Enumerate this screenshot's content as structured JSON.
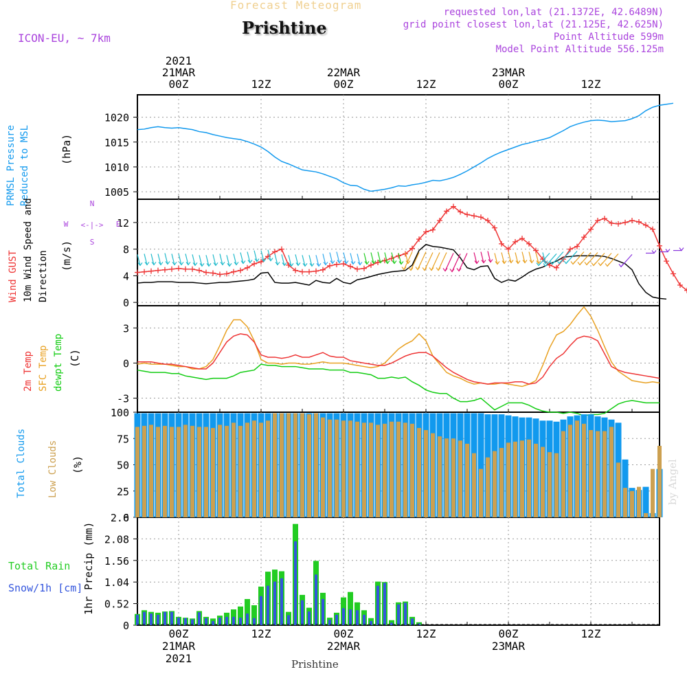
{
  "header": {
    "subtitle": "Forecast Meteogram",
    "location": "Prishtine",
    "model": "ICON-EU, ~ 7km",
    "requested": "requested lon,lat (21.1372E, 42.6489N)",
    "closest": "grid point closest lon,lat (21.125E, 42.625N)",
    "point_alt": "Point Altitude 599m",
    "model_alt": "Model Point Altitude 556.125m"
  },
  "footer": {
    "location": "Prishtine",
    "credit": "by Angel"
  },
  "time_axis": {
    "top_labels": [
      {
        "hour": 6,
        "lines": [
          "2021",
          "21MAR",
          "00Z"
        ]
      },
      {
        "hour": 18,
        "lines": [
          "12Z"
        ]
      },
      {
        "hour": 30,
        "lines": [
          "22MAR",
          "00Z"
        ]
      },
      {
        "hour": 42,
        "lines": [
          "12Z"
        ]
      },
      {
        "hour": 54,
        "lines": [
          "23MAR",
          "00Z"
        ]
      },
      {
        "hour": 66,
        "lines": [
          "12Z"
        ]
      }
    ],
    "bottom_labels": [
      {
        "hour": 6,
        "lines": [
          "00Z",
          "21MAR",
          "2021"
        ]
      },
      {
        "hour": 18,
        "lines": [
          "12Z"
        ]
      },
      {
        "hour": 30,
        "lines": [
          "00Z",
          "22MAR"
        ]
      },
      {
        "hour": 42,
        "lines": [
          "12Z"
        ]
      },
      {
        "hour": 54,
        "lines": [
          "00Z",
          "23MAR"
        ]
      },
      {
        "hour": 66,
        "lines": [
          "12Z"
        ]
      }
    ]
  },
  "colors": {
    "pressure": "#1199ee",
    "gust": "#ee3333",
    "wind": "#000000",
    "legend_green": "#00bb00",
    "temp2m": "#ee3333",
    "sfc": "#e8a020",
    "dewpt": "#11cc11",
    "total_clouds": "#1199ee",
    "low_clouds": "#cca050",
    "rain": "#22cc22",
    "snow": "#3355dd",
    "purple": "#aa44dd"
  },
  "chart_data": [
    {
      "type": "line",
      "title": "PRMSL Pressure Reduced to MSL",
      "ylabel": "(hPa)",
      "ylim": [
        1003.5,
        1024.5
      ],
      "yticks": [
        1005,
        1010,
        1015,
        1020
      ],
      "xlim": [
        0,
        76
      ],
      "x_step_hours": 1,
      "series": [
        {
          "name": "PRMSL",
          "values": [
            1017.5,
            1017.6,
            1017.9,
            1018.1,
            1017.9,
            1017.8,
            1017.9,
            1017.7,
            1017.5,
            1017.1,
            1016.9,
            1016.5,
            1016.2,
            1015.9,
            1015.7,
            1015.5,
            1015.1,
            1014.6,
            1014.0,
            1013.1,
            1012.0,
            1011.1,
            1010.6,
            1010.0,
            1009.4,
            1009.2,
            1009.0,
            1008.6,
            1008.1,
            1007.6,
            1006.8,
            1006.3,
            1006.2,
            1005.5,
            1005.1,
            1005.3,
            1005.5,
            1005.8,
            1006.2,
            1006.1,
            1006.4,
            1006.6,
            1006.9,
            1007.3,
            1007.2,
            1007.5,
            1007.9,
            1008.5,
            1009.2,
            1010.0,
            1010.8,
            1011.7,
            1012.4,
            1013.0,
            1013.5,
            1014.0,
            1014.5,
            1014.8,
            1015.2,
            1015.5,
            1015.9,
            1016.6,
            1017.3,
            1018.1,
            1018.6,
            1019.0,
            1019.3,
            1019.4,
            1019.3,
            1019.1,
            1019.2,
            1019.3,
            1019.7,
            1020.3,
            1021.3,
            1022.0,
            1022.4,
            1022.6,
            1022.8
          ]
        }
      ]
    },
    {
      "type": "line",
      "title": "Wind GUST / 10m Wind Speed and Direction",
      "ylabel": "(m/s)",
      "ylim": [
        -0.5,
        15.5
      ],
      "yticks": [
        0,
        4,
        8,
        12
      ],
      "compass": [
        "N",
        "E",
        "S",
        "W"
      ],
      "x_step_hours": 1,
      "series": [
        {
          "name": "Wind GUST",
          "values": [
            4.5,
            4.6,
            4.7,
            4.8,
            4.9,
            5.0,
            5.1,
            5.0,
            5.0,
            4.8,
            4.5,
            4.4,
            4.2,
            4.3,
            4.6,
            4.8,
            5.2,
            5.8,
            6.1,
            6.9,
            7.6,
            8.0,
            5.6,
            4.8,
            4.6,
            4.6,
            4.7,
            4.9,
            5.5,
            5.7,
            5.8,
            5.4,
            5.0,
            5.1,
            5.6,
            6.0,
            6.3,
            6.6,
            7.0,
            7.3,
            8.1,
            9.5,
            10.6,
            10.9,
            12.3,
            13.7,
            14.4,
            13.6,
            13.2,
            13.0,
            12.8,
            12.3,
            11.2,
            8.8,
            8.0,
            9.1,
            9.6,
            8.8,
            7.8,
            6.5,
            5.6,
            5.2,
            6.5,
            8.0,
            8.4,
            9.8,
            11.0,
            12.3,
            12.6,
            11.9,
            11.8,
            12.0,
            12.3,
            12.1,
            11.6,
            11.0,
            8.5,
            6.2,
            4.3,
            2.6,
            1.8,
            1.0,
            0.9
          ]
        },
        {
          "name": "10m Wind",
          "values": [
            2.9,
            3.0,
            3.0,
            3.1,
            3.1,
            3.1,
            3.0,
            3.0,
            3.0,
            2.9,
            2.8,
            2.9,
            3.0,
            3.0,
            3.1,
            3.2,
            3.3,
            3.5,
            4.4,
            4.5,
            3.0,
            2.9,
            2.9,
            3.0,
            2.8,
            2.6,
            3.3,
            3.0,
            2.9,
            3.6,
            3.0,
            2.8,
            3.4,
            3.6,
            3.9,
            4.2,
            4.4,
            4.6,
            4.7,
            4.8,
            5.6,
            7.8,
            8.7,
            8.4,
            8.3,
            8.1,
            7.9,
            6.7,
            5.2,
            4.9,
            5.4,
            5.5,
            3.6,
            3.0,
            3.4,
            3.2,
            3.8,
            4.5,
            5.0,
            5.3,
            5.8,
            6.2,
            6.8,
            6.9,
            7.0,
            7.0,
            7.0,
            7.0,
            6.9,
            6.6,
            6.2,
            5.8,
            4.9,
            2.8,
            1.5,
            0.8,
            0.6,
            0.5
          ]
        },
        {
          "name": "Barbs",
          "values": [
            7.2,
            7.3,
            7.3,
            7.3,
            7.4,
            7.3,
            7.3,
            7.3,
            7.2,
            7.1,
            7.1,
            7.2,
            7.3,
            7.1,
            7.3,
            7.5,
            7.6,
            7.8,
            7.8,
            7.9,
            7.3,
            7.2,
            7.1,
            7.2,
            7.1,
            7.1,
            7.1,
            7.3,
            7.5,
            7.6,
            7.5,
            7.4,
            7.3,
            7.4,
            7.5,
            7.6,
            7.5,
            7.5,
            7.4,
            7.5,
            7.6,
            7.5,
            7.6,
            7.5,
            7.5,
            7.5,
            7.4,
            7.3,
            7.4,
            7.5,
            7.6,
            7.7,
            7.4,
            7.5,
            7.6,
            7.5,
            7.6,
            7.6,
            7.5,
            7.5,
            7.4,
            7.3,
            7.6,
            7.7,
            7.7,
            7.6,
            7.5,
            7.5,
            7.4,
            7.4,
            7.3,
            7.3,
            7.2,
            7.3,
            7.4,
            7.5,
            7.6,
            7.7,
            7.8
          ]
        }
      ]
    },
    {
      "type": "line",
      "title": "2m Temp / SFC Temp / dewpt Temp",
      "ylabel": "(C)",
      "ylim": [
        -4.2,
        4.9
      ],
      "yticks": [
        -3,
        0,
        3
      ],
      "x_step_hours": 1,
      "series": [
        {
          "name": "2m Temp",
          "values": [
            0.1,
            0.1,
            0.1,
            0.0,
            -0.1,
            -0.1,
            -0.2,
            -0.3,
            -0.4,
            -0.5,
            -0.5,
            0.0,
            0.9,
            1.8,
            2.3,
            2.5,
            2.4,
            1.8,
            0.7,
            0.5,
            0.5,
            0.4,
            0.5,
            0.7,
            0.5,
            0.5,
            0.7,
            0.9,
            0.6,
            0.5,
            0.5,
            0.2,
            0.1,
            0.0,
            -0.1,
            -0.2,
            -0.2,
            0.0,
            0.3,
            0.6,
            0.8,
            0.9,
            0.9,
            0.6,
            0.1,
            -0.4,
            -0.8,
            -1.1,
            -1.4,
            -1.6,
            -1.7,
            -1.8,
            -1.7,
            -1.7,
            -1.7,
            -1.6,
            -1.6,
            -1.8,
            -1.7,
            -1.2,
            -0.3,
            0.4,
            0.8,
            1.5,
            2.1,
            2.3,
            2.2,
            1.9,
            0.8,
            -0.3,
            -0.6,
            -0.8,
            -0.9,
            -1.0,
            -1.1,
            -1.2,
            -1.3
          ]
        },
        {
          "name": "SFC Temp",
          "values": [
            -0.1,
            0.0,
            -0.1,
            -0.1,
            -0.1,
            -0.2,
            -0.3,
            -0.3,
            -0.5,
            -0.5,
            -0.3,
            0.3,
            1.5,
            2.8,
            3.7,
            3.7,
            3.1,
            1.9,
            0.3,
            0.0,
            0.0,
            -0.1,
            0.0,
            0.0,
            -0.1,
            -0.1,
            0.0,
            0.1,
            0.0,
            0.0,
            0.0,
            -0.1,
            -0.2,
            -0.3,
            -0.4,
            -0.3,
            0.0,
            0.6,
            1.2,
            1.6,
            1.9,
            2.5,
            1.9,
            0.6,
            -0.1,
            -0.8,
            -1.1,
            -1.3,
            -1.6,
            -1.8,
            -1.7,
            -1.8,
            -1.8,
            -1.7,
            -1.8,
            -1.9,
            -2.0,
            -1.8,
            -1.5,
            -0.2,
            1.3,
            2.4,
            2.7,
            3.3,
            4.1,
            4.8,
            4.0,
            2.8,
            1.4,
            0.1,
            -0.7,
            -1.1,
            -1.5,
            -1.6,
            -1.7,
            -1.6,
            -1.7
          ]
        },
        {
          "name": "dewpt Temp",
          "values": [
            -0.6,
            -0.7,
            -0.8,
            -0.8,
            -0.8,
            -0.9,
            -0.9,
            -1.1,
            -1.2,
            -1.3,
            -1.4,
            -1.3,
            -1.3,
            -1.3,
            -1.1,
            -0.8,
            -0.7,
            -0.6,
            -0.1,
            -0.2,
            -0.2,
            -0.3,
            -0.3,
            -0.3,
            -0.4,
            -0.5,
            -0.5,
            -0.5,
            -0.6,
            -0.6,
            -0.6,
            -0.8,
            -0.8,
            -0.9,
            -1.0,
            -1.3,
            -1.3,
            -1.2,
            -1.3,
            -1.2,
            -1.6,
            -1.9,
            -2.3,
            -2.5,
            -2.6,
            -2.6,
            -3.0,
            -3.3,
            -3.3,
            -3.2,
            -3.0,
            -3.5,
            -4.0,
            -3.7,
            -3.4,
            -3.4,
            -3.4,
            -3.6,
            -3.9,
            -4.1,
            -4.2,
            -4.2,
            -4.3,
            -4.2,
            -4.3,
            -4.5,
            -4.4,
            -4.4,
            -4.3,
            -3.9,
            -3.5,
            -3.3,
            -3.2,
            -3.3,
            -3.4,
            -3.4,
            -3.4
          ]
        }
      ]
    },
    {
      "type": "bar",
      "title": "Total Clouds / Low Clouds",
      "ylabel": "(%)",
      "ylim": [
        0,
        100
      ],
      "yticks": [
        0,
        25,
        50,
        75,
        100
      ],
      "x_step_hours": 1,
      "series": [
        {
          "name": "Total Clouds",
          "values": [
            99,
            99,
            99,
            99,
            99,
            99,
            99,
            99,
            99,
            99,
            99,
            99,
            99,
            99,
            99,
            99,
            99,
            99,
            99,
            99,
            99,
            99,
            99,
            99,
            99,
            99,
            99,
            99,
            99,
            99,
            99,
            99,
            99,
            99,
            99,
            99,
            99,
            99,
            99,
            99,
            99,
            99,
            99,
            99,
            99,
            99,
            99,
            99,
            99,
            99,
            99,
            98,
            98,
            98,
            97,
            96,
            95,
            95,
            94,
            92,
            92,
            91,
            93,
            96,
            97,
            98,
            98,
            96,
            95,
            93,
            90,
            55,
            28,
            26,
            29,
            4,
            46,
            68,
            72,
            67,
            66
          ]
        },
        {
          "name": "Low Clouds",
          "values": [
            86,
            87,
            88,
            86,
            87,
            86,
            86,
            88,
            87,
            86,
            86,
            85,
            88,
            87,
            90,
            87,
            90,
            92,
            90,
            92,
            99,
            99,
            99,
            99,
            99,
            98,
            99,
            95,
            93,
            93,
            92,
            92,
            91,
            90,
            90,
            88,
            89,
            91,
            91,
            90,
            89,
            85,
            83,
            80,
            77,
            75,
            75,
            73,
            70,
            61,
            46,
            57,
            63,
            66,
            71,
            72,
            73,
            74,
            70,
            67,
            62,
            61,
            82,
            88,
            92,
            89,
            83,
            82,
            82,
            86,
            52,
            28,
            25,
            29,
            4,
            46,
            68,
            67,
            66,
            65
          ]
        }
      ]
    },
    {
      "type": "bar",
      "title": "Total Rain / Snow/1h [cm]",
      "ylabel": "1hr Precip (mm)",
      "ylim": [
        0,
        2.6
      ],
      "yticks": [
        0,
        0.52,
        1.04,
        1.56,
        2.08,
        2.6
      ],
      "ytick_labels": [
        "0",
        "0.52",
        "1.04",
        "1.56",
        "2.08",
        "2.6"
      ],
      "x_step_hours": 1,
      "series": [
        {
          "name": "Total Rain",
          "values": [
            0.27,
            0.36,
            0.32,
            0.3,
            0.33,
            0.34,
            0.2,
            0.18,
            0.16,
            0.34,
            0.2,
            0.16,
            0.23,
            0.3,
            0.38,
            0.45,
            0.63,
            0.48,
            0.93,
            1.29,
            1.34,
            1.3,
            0.32,
            2.44,
            0.73,
            0.42,
            1.55,
            0.78,
            0.18,
            0.3,
            0.67,
            0.8,
            0.55,
            0.36,
            0.17,
            1.05,
            1.04,
            0.12,
            0.55,
            0.57,
            0.2,
            0.07,
            0,
            0,
            0,
            0,
            0,
            0,
            0,
            0,
            0,
            0,
            0,
            0,
            0,
            0,
            0,
            0,
            0,
            0,
            0,
            0,
            0,
            0,
            0,
            0,
            0,
            0,
            0,
            0,
            0,
            0,
            0,
            0,
            0,
            0
          ]
        },
        {
          "name": "Snow/1h",
          "values": [
            0.25,
            0.32,
            0.28,
            0.25,
            0.32,
            0.32,
            0.18,
            0.17,
            0.14,
            0.31,
            0.17,
            0.1,
            0.18,
            0.2,
            0.2,
            0.18,
            0.28,
            0.17,
            0.7,
            0.95,
            1.05,
            1.13,
            0.24,
            2.02,
            0.6,
            0.33,
            1.22,
            0.63,
            0.13,
            0.25,
            0.41,
            0.38,
            0.36,
            0.25,
            0.1,
            0.95,
            1.02,
            0.06,
            0.5,
            0.54,
            0.16,
            0.04,
            0,
            0,
            0,
            0,
            0,
            0,
            0,
            0,
            0,
            0,
            0,
            0,
            0,
            0,
            0,
            0,
            0,
            0,
            0,
            0,
            0,
            0,
            0,
            0,
            0,
            0,
            0,
            0,
            0,
            0,
            0,
            0,
            0,
            0
          ]
        }
      ]
    }
  ]
}
